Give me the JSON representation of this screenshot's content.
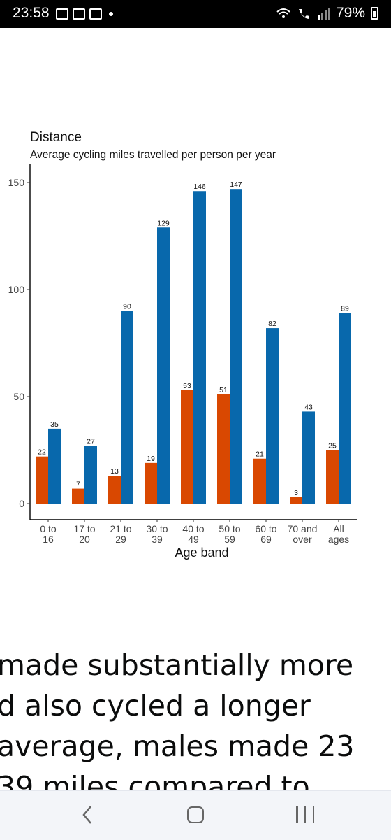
{
  "status_bar": {
    "time": "23:58",
    "battery": "79%",
    "left_icons": [
      "outlook-icon",
      "gallery-icon",
      "mail-icon",
      "notification-dot-icon"
    ],
    "right_icons": [
      "wifi-6e-icon",
      "wifi-call-icon",
      "signal-icon",
      "battery-icon"
    ]
  },
  "chart_data": {
    "type": "bar",
    "title": "Distance",
    "subtitle": "Average cycling miles travelled per person per year",
    "xlabel": "Age band",
    "ylabel": "",
    "ylim": [
      0,
      150
    ],
    "yticks": [
      0,
      50,
      100,
      150
    ],
    "categories": [
      "0 to 16",
      "17 to 20",
      "21 to 29",
      "30 to 39",
      "40 to 49",
      "50 to 59",
      "60 to 69",
      "70 and over",
      "All ages"
    ],
    "category_lines": [
      [
        "0 to",
        "16"
      ],
      [
        "17 to",
        "20"
      ],
      [
        "21 to",
        "29"
      ],
      [
        "30 to",
        "39"
      ],
      [
        "40 to",
        "49"
      ],
      [
        "50 to",
        "59"
      ],
      [
        "60 to",
        "69"
      ],
      [
        "70 and",
        "over"
      ],
      [
        "All",
        "ages"
      ]
    ],
    "series": [
      {
        "color": "#d94801",
        "values": [
          22,
          7,
          13,
          19,
          53,
          51,
          21,
          3,
          25
        ]
      },
      {
        "color": "#0868ac",
        "values": [
          35,
          27,
          90,
          129,
          146,
          147,
          82,
          43,
          89
        ]
      }
    ],
    "grid": false,
    "legend": "none"
  },
  "article": {
    "lines": [
      "made substantially more",
      "d also cycled a longer",
      "average, males made 23",
      "39 miles compared to"
    ]
  },
  "nav": {
    "buttons": [
      "back-icon",
      "home-icon",
      "recent-apps-icon"
    ]
  }
}
